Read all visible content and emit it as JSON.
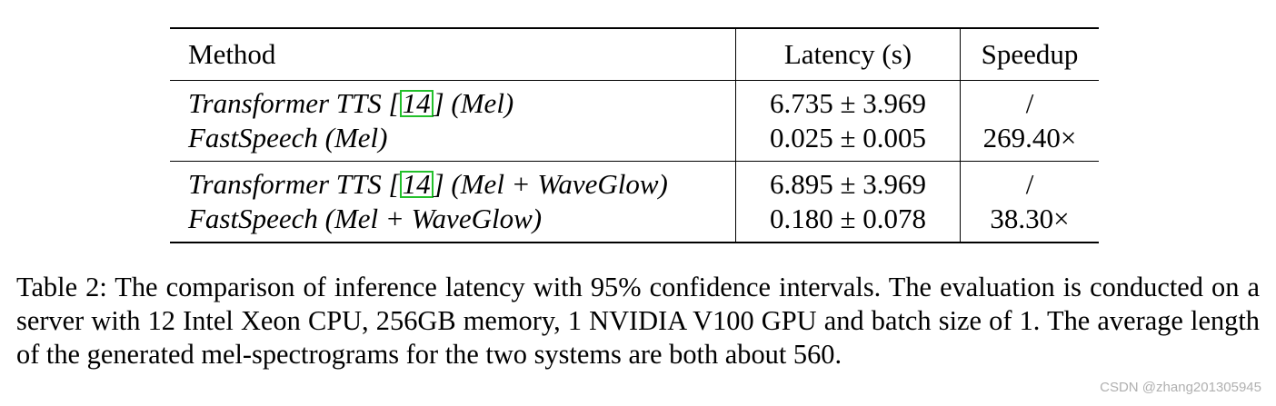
{
  "table": {
    "headers": [
      "Method",
      "Latency (s)",
      "Speedup"
    ],
    "groups": [
      {
        "rows": [
          {
            "method_prefix": "Transformer TTS [",
            "cite": "14",
            "method_suffix": "] (Mel)",
            "latency": "6.735 ± 3.969",
            "speedup": "/"
          },
          {
            "method_prefix": "FastSpeech (Mel)",
            "cite": "",
            "method_suffix": "",
            "latency": "0.025 ± 0.005",
            "speedup": "269.40×"
          }
        ]
      },
      {
        "rows": [
          {
            "method_prefix": "Transformer TTS [",
            "cite": "14",
            "method_suffix": "] (Mel + WaveGlow)",
            "latency": "6.895 ± 3.969",
            "speedup": "/"
          },
          {
            "method_prefix": "FastSpeech (Mel + WaveGlow)",
            "cite": "",
            "method_suffix": "",
            "latency": "0.180 ± 0.078",
            "speedup": "38.30×"
          }
        ]
      }
    ]
  },
  "caption": "Table 2: The comparison of inference latency with 95% confidence intervals. The evaluation is conducted on a server with 12 Intel Xeon CPU, 256GB memory, 1 NVIDIA V100 GPU and batch size of 1. The average length of the generated mel-spectrograms for the two systems are both about 560.",
  "watermark": "CSDN @zhang201305945"
}
